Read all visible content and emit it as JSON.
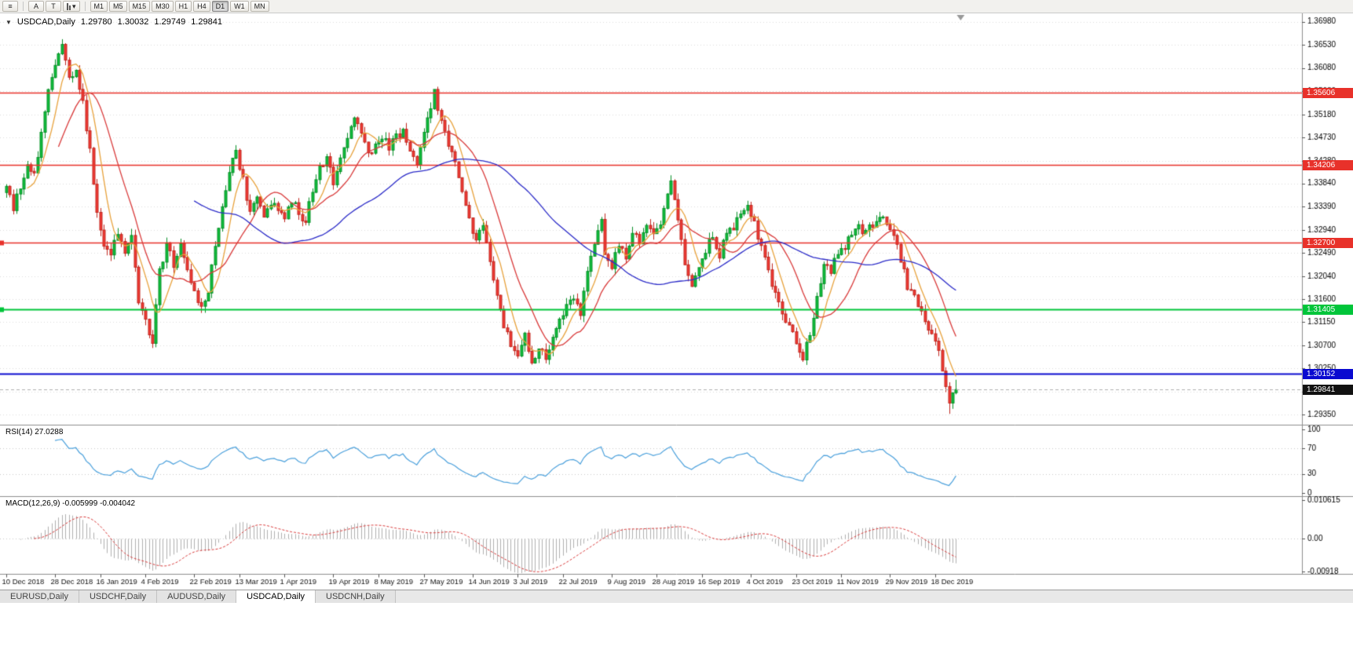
{
  "toolbar": {
    "menu_icon": "≡",
    "tool_buttons": [
      "A",
      "T"
    ],
    "dropdown_icon": "▾",
    "timeframes": [
      "M1",
      "M5",
      "M15",
      "M30",
      "H1",
      "H4",
      "D1",
      "W1",
      "MN"
    ],
    "active_timeframe": "D1"
  },
  "chart_header": {
    "collapse_icon": "▼",
    "symbol": "USDCAD,Daily",
    "open": "1.29780",
    "high": "1.30032",
    "low": "1.29749",
    "close": "1.29841"
  },
  "indicators": {
    "rsi_label": "RSI(14) 27.0288",
    "macd_label": "MACD(12,26,9) -0.005999 -0.004042"
  },
  "tabs": {
    "items": [
      "EURUSD,Daily",
      "USDCHF,Daily",
      "AUDUSD,Daily",
      "USDCAD,Daily",
      "USDCNH,Daily"
    ],
    "active_index": 3
  },
  "chart_data": {
    "type": "candlestick",
    "symbol": "USDCAD",
    "timeframe": "Daily",
    "bars_total": 274,
    "candle_up": "#0fbf3c",
    "candle_up_border": "#089028",
    "candle_down": "#f23a34",
    "candle_down_border": "#c02820",
    "price_axis": {
      "min": 1.2919,
      "max": 1.3705,
      "labels": [
        "1.36980",
        "1.36530",
        "1.36080",
        "1.35630",
        "1.35180",
        "1.34730",
        "1.34280",
        "1.33840",
        "1.33390",
        "1.32940",
        "1.32490",
        "1.32040",
        "1.31600",
        "1.31150",
        "1.30700",
        "1.30250",
        "1.29800",
        "1.29350"
      ]
    },
    "date_ticks": [
      {
        "bar": 0,
        "label": "10 Dec 2018"
      },
      {
        "bar": 14,
        "label": "28 Dec 2018"
      },
      {
        "bar": 27,
        "label": "16 Jan 2019"
      },
      {
        "bar": 40,
        "label": "4 Feb 2019"
      },
      {
        "bar": 54,
        "label": "22 Feb 2019"
      },
      {
        "bar": 67,
        "label": "13 Mar 2019"
      },
      {
        "bar": 80,
        "label": "1 Apr 2019"
      },
      {
        "bar": 94,
        "label": "19 Apr 2019"
      },
      {
        "bar": 107,
        "label": "8 May 2019"
      },
      {
        "bar": 120,
        "label": "27 May 2019"
      },
      {
        "bar": 134,
        "label": "14 Jun 2019"
      },
      {
        "bar": 147,
        "label": "3 Jul 2019"
      },
      {
        "bar": 160,
        "label": "22 Jul 2019"
      },
      {
        "bar": 174,
        "label": "9 Aug 2019"
      },
      {
        "bar": 187,
        "label": "28 Aug 2019"
      },
      {
        "bar": 200,
        "label": "16 Sep 2019"
      },
      {
        "bar": 214,
        "label": "4 Oct 2019"
      },
      {
        "bar": 227,
        "label": "23 Oct 2019"
      },
      {
        "bar": 240,
        "label": "11 Nov 2019"
      },
      {
        "bar": 254,
        "label": "29 Nov 2019"
      },
      {
        "bar": 267,
        "label": "18 Dec 2019"
      }
    ],
    "price_path_anchors": [
      [
        0,
        1.3385
      ],
      [
        2,
        1.334
      ],
      [
        4,
        1.337
      ],
      [
        6,
        1.342
      ],
      [
        8,
        1.34
      ],
      [
        10,
        1.348
      ],
      [
        12,
        1.356
      ],
      [
        14,
        1.362
      ],
      [
        16,
        1.3655
      ],
      [
        18,
        1.3585
      ],
      [
        20,
        1.3605
      ],
      [
        22,
        1.354
      ],
      [
        24,
        1.345
      ],
      [
        26,
        1.332
      ],
      [
        28,
        1.327
      ],
      [
        30,
        1.324
      ],
      [
        32,
        1.329
      ],
      [
        34,
        1.3255
      ],
      [
        36,
        1.329
      ],
      [
        38,
        1.316
      ],
      [
        40,
        1.3115
      ],
      [
        42,
        1.3075
      ],
      [
        44,
        1.321
      ],
      [
        46,
        1.326
      ],
      [
        48,
        1.323
      ],
      [
        50,
        1.327
      ],
      [
        52,
        1.321
      ],
      [
        54,
        1.317
      ],
      [
        56,
        1.3145
      ],
      [
        58,
        1.318
      ],
      [
        60,
        1.326
      ],
      [
        62,
        1.333
      ],
      [
        64,
        1.34
      ],
      [
        66,
        1.345
      ],
      [
        68,
        1.339
      ],
      [
        70,
        1.333
      ],
      [
        72,
        1.336
      ],
      [
        74,
        1.332
      ],
      [
        76,
        1.3345
      ],
      [
        78,
        1.3335
      ],
      [
        80,
        1.3315
      ],
      [
        82,
        1.3355
      ],
      [
        84,
        1.333
      ],
      [
        86,
        1.331
      ],
      [
        88,
        1.337
      ],
      [
        90,
        1.341
      ],
      [
        92,
        1.343
      ],
      [
        94,
        1.3385
      ],
      [
        96,
        1.343
      ],
      [
        98,
        1.348
      ],
      [
        100,
        1.3515
      ],
      [
        102,
        1.348
      ],
      [
        104,
        1.3435
      ],
      [
        106,
        1.3465
      ],
      [
        108,
        1.3475
      ],
      [
        110,
        1.345
      ],
      [
        112,
        1.3475
      ],
      [
        114,
        1.349
      ],
      [
        116,
        1.345
      ],
      [
        118,
        1.3425
      ],
      [
        120,
        1.3475
      ],
      [
        122,
        1.353
      ],
      [
        123,
        1.356
      ],
      [
        125,
        1.3505
      ],
      [
        127,
        1.3455
      ],
      [
        129,
        1.342
      ],
      [
        131,
        1.336
      ],
      [
        133,
        1.331
      ],
      [
        135,
        1.327
      ],
      [
        137,
        1.33
      ],
      [
        139,
        1.324
      ],
      [
        141,
        1.316
      ],
      [
        143,
        1.311
      ],
      [
        145,
        1.3075
      ],
      [
        147,
        1.3055
      ],
      [
        149,
        1.3085
      ],
      [
        151,
        1.3035
      ],
      [
        153,
        1.3065
      ],
      [
        155,
        1.3045
      ],
      [
        157,
        1.3085
      ],
      [
        159,
        1.3115
      ],
      [
        161,
        1.3145
      ],
      [
        163,
        1.3165
      ],
      [
        165,
        1.3125
      ],
      [
        167,
        1.3215
      ],
      [
        169,
        1.327
      ],
      [
        171,
        1.331
      ],
      [
        172,
        1.325
      ],
      [
        174,
        1.3225
      ],
      [
        176,
        1.3265
      ],
      [
        178,
        1.3235
      ],
      [
        180,
        1.3295
      ],
      [
        182,
        1.3265
      ],
      [
        184,
        1.331
      ],
      [
        186,
        1.3285
      ],
      [
        188,
        1.331
      ],
      [
        190,
        1.337
      ],
      [
        191,
        1.3385
      ],
      [
        193,
        1.332
      ],
      [
        195,
        1.3235
      ],
      [
        197,
        1.318
      ],
      [
        199,
        1.322
      ],
      [
        201,
        1.3255
      ],
      [
        203,
        1.3285
      ],
      [
        205,
        1.3245
      ],
      [
        207,
        1.329
      ],
      [
        209,
        1.33
      ],
      [
        211,
        1.333
      ],
      [
        213,
        1.3345
      ],
      [
        215,
        1.331
      ],
      [
        217,
        1.326
      ],
      [
        219,
        1.3215
      ],
      [
        221,
        1.3165
      ],
      [
        223,
        1.3135
      ],
      [
        225,
        1.3105
      ],
      [
        227,
        1.308
      ],
      [
        229,
        1.305
      ],
      [
        231,
        1.3095
      ],
      [
        233,
        1.316
      ],
      [
        235,
        1.323
      ],
      [
        237,
        1.3215
      ],
      [
        239,
        1.3245
      ],
      [
        241,
        1.3265
      ],
      [
        243,
        1.328
      ],
      [
        245,
        1.33
      ],
      [
        247,
        1.3285
      ],
      [
        249,
        1.3305
      ],
      [
        251,
        1.332
      ],
      [
        253,
        1.3305
      ],
      [
        255,
        1.329
      ],
      [
        257,
        1.324
      ],
      [
        259,
        1.3185
      ],
      [
        261,
        1.3165
      ],
      [
        263,
        1.313
      ],
      [
        265,
        1.3105
      ],
      [
        267,
        1.308
      ],
      [
        268,
        1.3055
      ],
      [
        269,
        1.302
      ],
      [
        270,
        1.299
      ],
      [
        271,
        1.2958
      ],
      [
        272,
        1.2975
      ],
      [
        273,
        1.29841
      ]
    ],
    "special_wicks": {
      "16": {
        "h": 1.3664
      },
      "123": {
        "h": 1.3562
      },
      "271": {
        "l": 1.2937
      }
    },
    "last_candle": {
      "o": 1.2978,
      "h": 1.30032,
      "l": 1.29749,
      "c": 1.29841
    },
    "levels": [
      {
        "label": "1.35606",
        "price": 1.35606,
        "color": "#e8312a",
        "width": 1.6
      },
      {
        "label": "1.34206",
        "price": 1.34206,
        "color": "#e8312a",
        "width": 1.6
      },
      {
        "label": "1.32700",
        "price": 1.327,
        "color": "#e8312a",
        "width": 1.6,
        "edge_marker": true
      },
      {
        "label": "1.31405",
        "price": 1.31405,
        "color": "#00c53a",
        "width": 1.8,
        "edge_marker": true
      },
      {
        "label": "1.30152",
        "price": 1.30152,
        "color": "#0a0ad0",
        "width": 2.2
      }
    ],
    "current_price": {
      "label": "1.29841",
      "value": 1.29841,
      "badge_color": "#111111"
    },
    "moving_averages": [
      {
        "period": 7,
        "color": "#e8a23c"
      },
      {
        "period": 16,
        "color": "#d93a3a"
      },
      {
        "period": 55,
        "color": "#2b2bc8"
      }
    ],
    "rsi": {
      "period": 14,
      "current": "27.0288",
      "color": "#4aa0dc",
      "axis_labels": [
        {
          "value": 100,
          "label": "100"
        },
        {
          "value": 70,
          "label": "70"
        },
        {
          "value": 30,
          "label": "30"
        },
        {
          "value": 0,
          "label": "0"
        }
      ],
      "guide_levels": [
        70,
        30
      ]
    },
    "macd": {
      "fast": 12,
      "slow": 26,
      "signal": 9,
      "current": "-0.005999",
      "signal_current": "-0.004042",
      "range": [
        -0.00918,
        0.010615
      ],
      "axis_labels": [
        {
          "value": 0.010615,
          "label": "0.010615"
        },
        {
          "value": 0,
          "label": "0.00"
        },
        {
          "value": -0.00918,
          "label": "-0.00918"
        }
      ],
      "histogram_color": "#b0b0b0",
      "signal_color": "#d93a3a"
    }
  }
}
